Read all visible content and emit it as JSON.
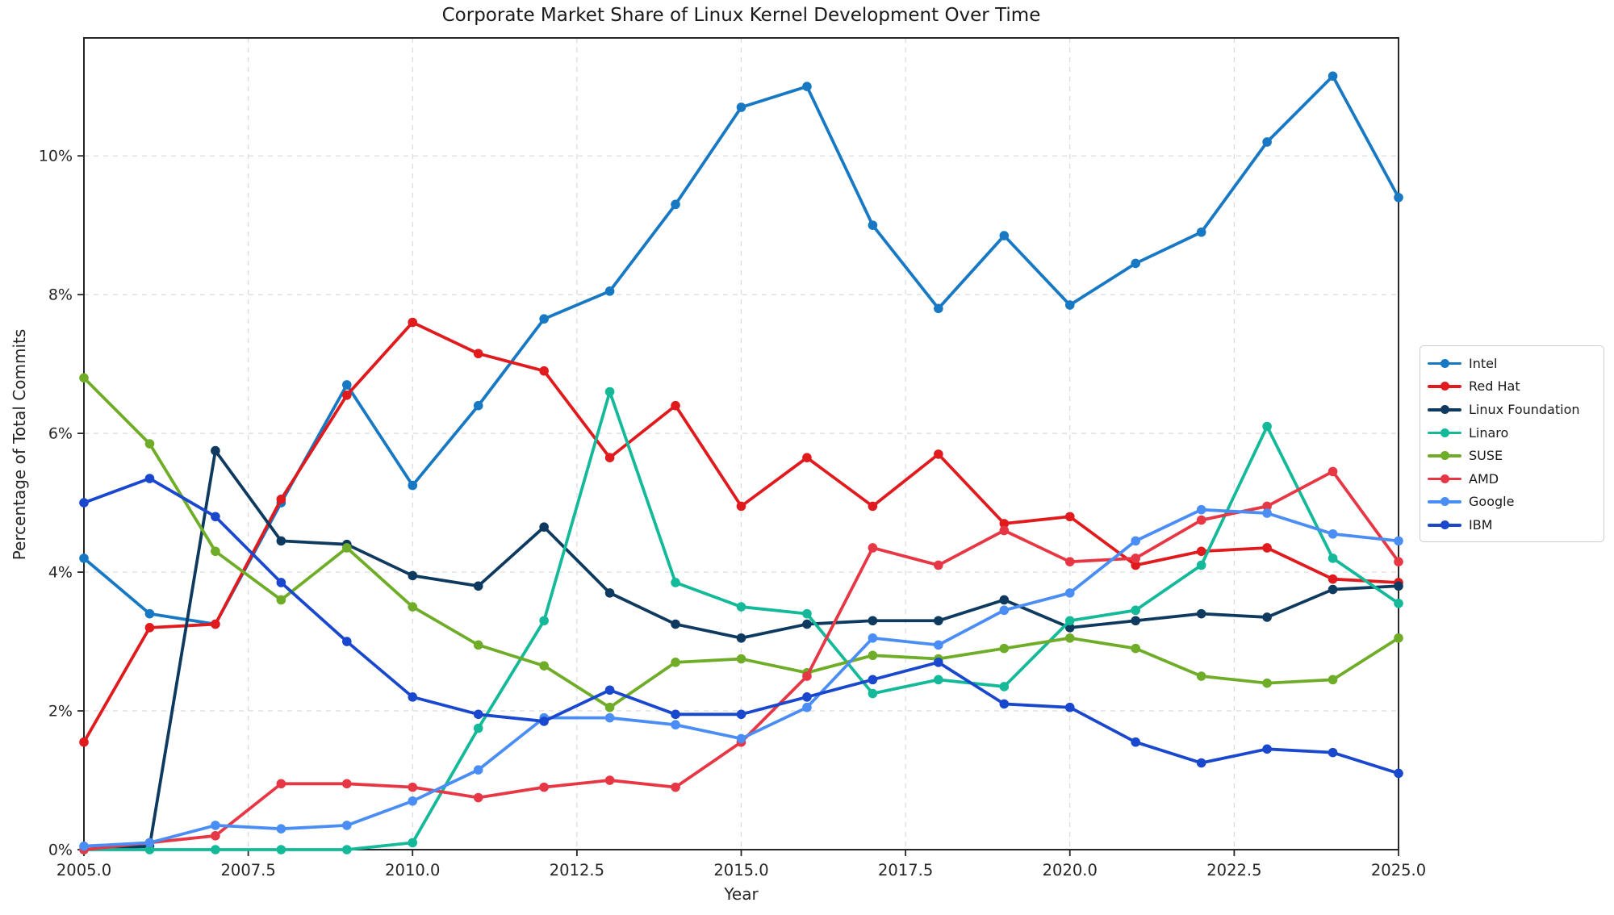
{
  "chart_data": {
    "type": "line",
    "title": "Corporate Market Share of Linux Kernel Development Over Time",
    "xlabel": "Year",
    "ylabel": "Percentage of Total Commits",
    "grid": true,
    "legend_position": "right-outside",
    "xlim": [
      2005,
      2025
    ],
    "ylim": [
      0,
      11.7
    ],
    "x": [
      2005,
      2006,
      2007,
      2008,
      2009,
      2010,
      2011,
      2012,
      2013,
      2014,
      2015,
      2016,
      2017,
      2018,
      2019,
      2020,
      2021,
      2022,
      2023,
      2024,
      2025
    ],
    "x_ticks": [
      2005,
      2007.5,
      2010,
      2012.5,
      2015,
      2017.5,
      2020,
      2022.5,
      2025
    ],
    "x_tick_labels": [
      "2005.0",
      "2007.5",
      "2010.0",
      "2012.5",
      "2015.0",
      "2017.5",
      "2020.0",
      "2022.5",
      "2025.0"
    ],
    "y_ticks": [
      0,
      2,
      4,
      6,
      8,
      10
    ],
    "y_tick_labels": [
      "0%",
      "2%",
      "4%",
      "6%",
      "8%",
      "10%"
    ],
    "axis_color": "#262626",
    "grid_color": "#d9d9d9",
    "series": [
      {
        "name": "Intel",
        "color": "#1778c4",
        "values": [
          4.2,
          3.4,
          3.25,
          5.0,
          6.7,
          5.25,
          6.4,
          7.65,
          8.05,
          9.3,
          10.7,
          11.0,
          9.0,
          7.8,
          8.85,
          7.85,
          8.45,
          8.9,
          10.2,
          11.15,
          9.4
        ]
      },
      {
        "name": "Red Hat",
        "color": "#e01a1d",
        "values": [
          1.55,
          3.2,
          3.25,
          5.05,
          6.55,
          7.6,
          7.15,
          6.9,
          5.65,
          6.4,
          4.95,
          5.65,
          4.95,
          5.7,
          4.7,
          4.8,
          4.1,
          4.3,
          4.35,
          3.9,
          3.85
        ]
      },
      {
        "name": "Linux Foundation",
        "color": "#0f3a5f",
        "values": [
          0.0,
          0.05,
          5.75,
          4.45,
          4.4,
          3.95,
          3.8,
          4.65,
          3.7,
          3.25,
          3.05,
          3.25,
          3.3,
          3.3,
          3.6,
          3.2,
          3.3,
          3.4,
          3.35,
          3.75,
          3.8
        ]
      },
      {
        "name": "Linaro",
        "color": "#13b998",
        "values": [
          0.0,
          0.0,
          0.0,
          0.0,
          0.0,
          0.1,
          1.75,
          3.3,
          6.6,
          3.85,
          3.5,
          3.4,
          2.25,
          2.45,
          2.35,
          3.3,
          3.45,
          4.1,
          6.1,
          4.2,
          3.55
        ]
      },
      {
        "name": "SUSE",
        "color": "#6fad28",
        "values": [
          6.8,
          5.85,
          4.3,
          3.6,
          4.35,
          3.5,
          2.95,
          2.65,
          2.05,
          2.7,
          2.75,
          2.55,
          2.8,
          2.75,
          2.9,
          3.05,
          2.9,
          2.5,
          2.4,
          2.45,
          3.05
        ]
      },
      {
        "name": "AMD",
        "color": "#e73744",
        "values": [
          0.0,
          0.1,
          0.2,
          0.95,
          0.95,
          0.9,
          0.75,
          0.9,
          1.0,
          0.9,
          1.55,
          2.5,
          4.35,
          4.1,
          4.6,
          4.15,
          4.2,
          4.75,
          4.95,
          5.45,
          4.15
        ]
      },
      {
        "name": "Google",
        "color": "#4a8df5",
        "values": [
          0.05,
          0.1,
          0.35,
          0.3,
          0.35,
          0.7,
          1.15,
          1.9,
          1.9,
          1.8,
          1.6,
          2.05,
          3.05,
          2.95,
          3.45,
          3.7,
          4.45,
          4.9,
          4.85,
          4.55,
          4.45
        ]
      },
      {
        "name": "IBM",
        "color": "#1947cd",
        "values": [
          5.0,
          5.35,
          4.8,
          3.85,
          3.0,
          2.2,
          1.95,
          1.85,
          2.3,
          1.95,
          1.95,
          2.2,
          2.45,
          2.7,
          2.1,
          2.05,
          1.55,
          1.25,
          1.45,
          1.4,
          1.1
        ]
      }
    ]
  }
}
